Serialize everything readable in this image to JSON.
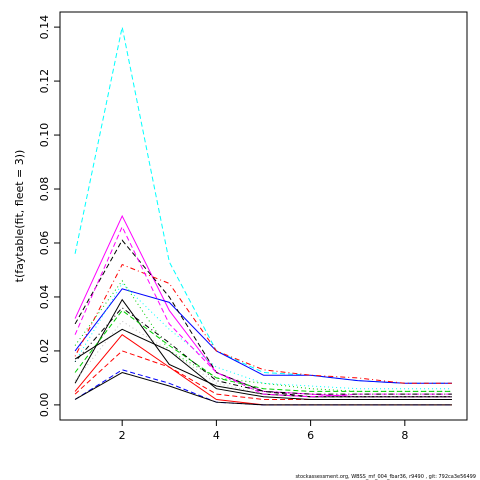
{
  "chart_data": {
    "type": "line",
    "ylabel": "t(faytable(fit, fleet = 3))",
    "footer": "stockassessment.org, WBSS_mf_004_fbar36, r9490 , git: 792ca3e56499",
    "x": [
      1,
      2,
      3,
      4,
      5,
      6,
      7,
      8,
      9
    ],
    "xlim": [
      0.68,
      9.32
    ],
    "xticks": [
      2,
      4,
      6,
      8
    ],
    "ylim": [
      -0.0056,
      0.1456
    ],
    "yticks": [
      {
        "value": 0,
        "label": "0.00"
      },
      0.02,
      0.04,
      0.06,
      0.08,
      {
        "value": 0.1,
        "label": "0.10"
      },
      0.12,
      0.14
    ],
    "series": [
      {
        "color": "#00ffff",
        "lty": "dashed",
        "values": [
          0.056,
          0.14,
          0.053,
          0.02,
          0.012,
          0.011,
          0.009,
          0.008,
          0.008
        ]
      },
      {
        "color": "#ff00ff",
        "lty": "solid",
        "values": [
          0.032,
          0.07,
          0.035,
          0.012,
          0.005,
          0.004,
          0.003,
          0.003,
          0.003
        ]
      },
      {
        "color": "#0000ff",
        "lty": "solid",
        "values": [
          0.02,
          0.043,
          0.038,
          0.02,
          0.011,
          0.011,
          0.009,
          0.008,
          0.008
        ]
      },
      {
        "color": "#000000",
        "lty": "dashed",
        "values": [
          0.03,
          0.061,
          0.04,
          0.012,
          0.005,
          0.003,
          0.003,
          0.003,
          0.003
        ]
      },
      {
        "color": "#ff0000",
        "lty": "dotdash",
        "values": [
          0.018,
          0.052,
          0.045,
          0.02,
          0.013,
          0.011,
          0.01,
          0.008,
          0.008
        ]
      },
      {
        "color": "#00cd00",
        "lty": "dotted",
        "values": [
          0.022,
          0.046,
          0.02,
          0.01,
          0.008,
          0.006,
          0.005,
          0.005,
          0.005
        ]
      },
      {
        "color": "#000000",
        "lty": "solid",
        "values": [
          0.008,
          0.039,
          0.015,
          0.007,
          0.004,
          0.003,
          0.003,
          0.003,
          0.003
        ]
      },
      {
        "color": "#ff0000",
        "lty": "solid",
        "values": [
          0.005,
          0.026,
          0.014,
          0.002,
          0,
          0,
          0,
          0,
          0
        ]
      },
      {
        "color": "#0000ff",
        "lty": "dashed",
        "values": [
          0.002,
          0.013,
          0.008,
          0.001,
          0,
          0,
          0,
          0,
          0
        ]
      },
      {
        "color": "#000000",
        "lty": "solid",
        "values": [
          0.002,
          0.012,
          0.007,
          0.001,
          0,
          0,
          0,
          0,
          0
        ]
      },
      {
        "color": "#ff0000",
        "lty": "dashed",
        "values": [
          0.004,
          0.02,
          0.014,
          0.004,
          0.002,
          0.002,
          0.002,
          0.002,
          0.002
        ]
      },
      {
        "color": "#bebebe",
        "lty": "dotted",
        "values": [
          0.009,
          0.031,
          0.02,
          0.008,
          0.004,
          0.003,
          0.003,
          0.003,
          0.003
        ]
      },
      {
        "color": "#00ffff",
        "lty": "dotted",
        "values": [
          0.016,
          0.045,
          0.028,
          0.014,
          0.008,
          0.007,
          0.006,
          0.006,
          0.006
        ]
      },
      {
        "color": "#ff00ff",
        "lty": "dashed",
        "values": [
          0.026,
          0.066,
          0.03,
          0.012,
          0.004,
          0.003,
          0.004,
          0.004,
          0.004
        ]
      },
      {
        "color": "#00cd00",
        "lty": "dashed",
        "values": [
          0.012,
          0.035,
          0.022,
          0.01,
          0.006,
          0.005,
          0.005,
          0.005,
          0.005
        ]
      },
      {
        "color": "#000000",
        "lty": "dotdash",
        "values": [
          0.016,
          0.036,
          0.023,
          0.009,
          0.005,
          0.004,
          0.004,
          0.004,
          0.004
        ]
      },
      {
        "color": "#000000",
        "lty": "solid",
        "values": [
          0.017,
          0.028,
          0.02,
          0.006,
          0.003,
          0.002,
          0.002,
          0.002,
          0.002
        ]
      }
    ]
  }
}
